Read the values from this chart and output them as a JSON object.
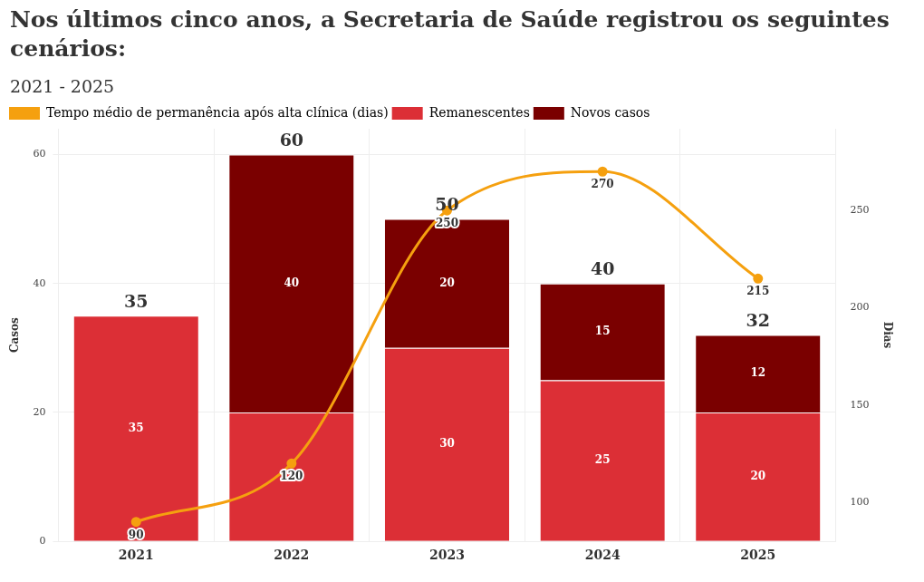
{
  "chart_data": {
    "type": "bar",
    "title": "Nos últimos cinco anos, a Secretaria de Saúde registrou os seguintes cenários:",
    "subtitle": "2021 - 2025",
    "ylabel": "Casos",
    "y2label": "Dias",
    "categories": [
      "2021",
      "2022",
      "2023",
      "2024",
      "2025"
    ],
    "stacked": true,
    "series": [
      {
        "name": "Tempo médio de permanência após alta clínica (dias)",
        "type": "line",
        "axis": "y2",
        "color": "#f5a00f",
        "values": [
          90,
          120,
          250,
          270,
          215
        ],
        "value_labels": [
          "90",
          "120",
          "250",
          "270",
          "215"
        ]
      },
      {
        "name": "Remanescentes",
        "color": "#dc2f36",
        "values": [
          35,
          20,
          30,
          25,
          20
        ],
        "value_labels": [
          "35",
          null,
          "30",
          "25",
          "20"
        ]
      },
      {
        "name": "Novos casos",
        "color": "#7a0000",
        "values": [
          null,
          40,
          20,
          15,
          12
        ],
        "value_labels": [
          null,
          "40",
          "20",
          "15",
          "12"
        ]
      }
    ],
    "totals": [
      "35",
      "60",
      "50",
      "40",
      "32"
    ],
    "marker": "circle",
    "line_style": "solid",
    "ylim": [
      0,
      64
    ],
    "yticks": [
      0,
      20,
      40,
      60
    ],
    "y2lim": [
      80,
      292
    ],
    "y2ticks": [
      100,
      150,
      200,
      250
    ],
    "grid": true,
    "legend": "top left"
  }
}
